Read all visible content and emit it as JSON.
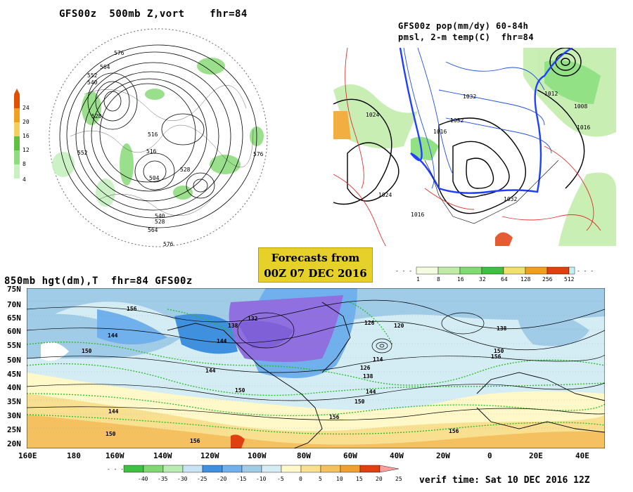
{
  "forecast_banner": {
    "line1": "Forecasts from",
    "line2": "00Z 07 DEC 2016"
  },
  "panel_500mb": {
    "title": "GFS00z  500mb Z,vort    fhr=84",
    "colorbar": {
      "ticks": [
        "24",
        "20",
        "16",
        "12",
        "8",
        "4"
      ],
      "colors": [
        "#e05000",
        "#f0a020",
        "#f4d060",
        "#60c040",
        "#90dc80",
        "#c8f0c0"
      ]
    },
    "contour_labels": [
      "576",
      "564",
      "552",
      "540",
      "528",
      "516",
      "504",
      "528",
      "516",
      "576",
      "552",
      "564",
      "540",
      "528",
      "576"
    ]
  },
  "panel_pop": {
    "title_line1": "GFS00z pop(mm/dy) 60-84h",
    "title_line2": "pmsl, 2-m temp(C)  fhr=84",
    "contour_labels": [
      "1024",
      "1024",
      "1032",
      "1032",
      "1016",
      "1008",
      "1016",
      "1012",
      "1032",
      "1016"
    ],
    "colorbar": {
      "ticks": [
        "1",
        "8",
        "16",
        "32",
        "64",
        "128",
        "256",
        "512"
      ],
      "colors": [
        "#f4fce0",
        "#c0eca8",
        "#80dc70",
        "#40c040",
        "#f0e070",
        "#f0a020",
        "#e04010",
        "#c0f0f4"
      ]
    }
  },
  "panel_850mb": {
    "title": "850mb hgt(dm),T  fhr=84 GFS00z",
    "lat_labels": [
      "75N",
      "70N",
      "65N",
      "60N",
      "55N",
      "50N",
      "45N",
      "40N",
      "35N",
      "30N",
      "25N",
      "20N"
    ],
    "lon_labels": [
      "160E",
      "180",
      "160W",
      "140W",
      "120W",
      "100W",
      "80W",
      "60W",
      "40W",
      "20W",
      "0",
      "20E",
      "40E"
    ],
    "contour_labels": [
      "156",
      "144",
      "150",
      "132",
      "138",
      "144",
      "126",
      "120",
      "114",
      "126",
      "138",
      "144",
      "150",
      "156",
      "144",
      "138",
      "150",
      "156",
      "144",
      "150",
      "156",
      "150",
      "156"
    ],
    "colorbar": {
      "ticks": [
        "-40",
        "-35",
        "-30",
        "-25",
        "-20",
        "-15",
        "-10",
        "-5",
        "0",
        "5",
        "10",
        "15",
        "20",
        "25"
      ],
      "colors": [
        "#40c040",
        "#80d870",
        "#b8ecb0",
        "#c8e4f4",
        "#4090e0",
        "#70b0ec",
        "#a0cce8",
        "#d4ecf4",
        "#fff8c8",
        "#f8e090",
        "#f4c060",
        "#f0a030",
        "#e04010",
        "#f8a0a0"
      ]
    }
  },
  "verif_time": "verif time: Sat 10 DEC 2016 12Z"
}
